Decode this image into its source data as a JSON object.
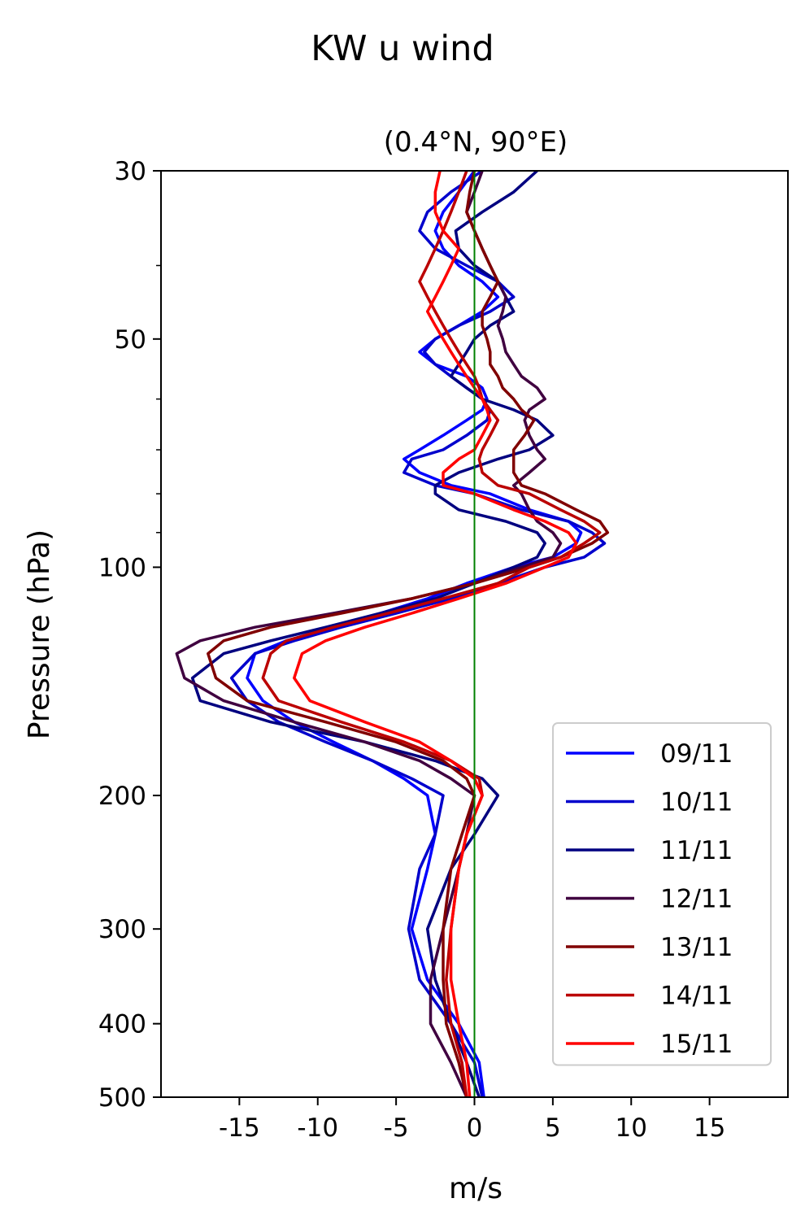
{
  "chart_data": {
    "type": "line",
    "title": "KW u wind",
    "subtitle": "(0.4°N, 90°E)",
    "xlabel": "m/s",
    "ylabel": "Pressure (hPa)",
    "xlim": [
      -20,
      20
    ],
    "ylim": [
      500,
      30
    ],
    "yscale": "log",
    "xticks": [
      -15,
      -10,
      -5,
      0,
      5,
      10,
      15
    ],
    "xtick_labels": [
      "-15",
      "-10",
      "-5",
      "0",
      "5",
      "10",
      "15"
    ],
    "yticks_major": [
      30,
      50,
      100,
      200,
      300,
      400,
      500
    ],
    "ytick_labels": [
      "30",
      "50",
      "100",
      "200",
      "300",
      "400",
      "500"
    ],
    "yticks_minor": [
      40,
      60,
      70,
      80,
      90
    ],
    "zero_line_color": "#008000",
    "grid": false,
    "legend_position": "lower right",
    "pressure_levels": [
      500,
      450,
      400,
      350,
      300,
      250,
      225,
      200,
      190,
      180,
      170,
      160,
      150,
      140,
      130,
      125,
      120,
      115,
      110,
      105,
      100,
      97,
      93,
      90,
      87,
      84,
      80,
      78,
      75,
      72,
      70,
      67,
      64,
      62,
      60,
      58,
      56,
      54,
      52,
      50,
      48,
      46,
      44,
      42,
      40,
      38,
      36,
      34,
      32,
      30
    ],
    "series": [
      {
        "name": "09/11",
        "color": "#0000ff",
        "values": [
          0.6,
          0.3,
          -1.0,
          -3.0,
          -4.0,
          -3.0,
          -2.5,
          -3.0,
          -4.5,
          -6.5,
          -9.0,
          -11.5,
          -13.5,
          -14.5,
          -14.0,
          -12.0,
          -9.0,
          -6.0,
          -3.0,
          -0.5,
          2.5,
          5.0,
          6.5,
          6.8,
          6.0,
          3.5,
          1.0,
          -1.5,
          -3.5,
          -4.5,
          -3.5,
          -2.0,
          -0.5,
          0.5,
          0.8,
          0.5,
          -0.5,
          -2.5,
          -3.5,
          -2.5,
          -1.0,
          0.5,
          1.5,
          0.5,
          -1.0,
          -2.0,
          -2.5,
          -2.0,
          -1.0,
          0.0
        ]
      },
      {
        "name": "10/11",
        "color": "#0000cc",
        "values": [
          0.5,
          0.0,
          -1.5,
          -3.5,
          -4.2,
          -3.5,
          -2.5,
          -2.0,
          -4.0,
          -6.5,
          -9.5,
          -12.5,
          -14.5,
          -15.5,
          -14.0,
          -11.5,
          -8.5,
          -5.0,
          -1.5,
          1.5,
          4.5,
          7.0,
          8.3,
          7.5,
          6.0,
          3.0,
          0.0,
          -2.5,
          -4.5,
          -4.0,
          -2.0,
          -0.5,
          0.8,
          1.0,
          0.5,
          -0.5,
          -1.5,
          -2.5,
          -3.2,
          -2.5,
          -1.0,
          1.0,
          2.5,
          1.5,
          -0.5,
          -2.5,
          -3.5,
          -3.0,
          -1.5,
          0.5
        ]
      },
      {
        "name": "11/11",
        "color": "#000080",
        "values": [
          0.3,
          -0.5,
          -1.5,
          -2.5,
          -3.0,
          -1.5,
          0.0,
          1.5,
          0.5,
          -2.5,
          -7.0,
          -13.0,
          -17.5,
          -18.0,
          -16.0,
          -13.0,
          -9.5,
          -6.0,
          -2.5,
          0.0,
          2.5,
          4.0,
          4.5,
          4.0,
          2.0,
          -1.0,
          -2.5,
          -2.5,
          -1.0,
          1.5,
          3.5,
          5.0,
          4.0,
          2.5,
          0.5,
          -0.5,
          -1.5,
          -1.0,
          -0.5,
          0.0,
          1.0,
          2.5,
          2.0,
          1.5,
          0.0,
          -1.0,
          -1.2,
          0.5,
          2.5,
          4.0
        ]
      },
      {
        "name": "12/11",
        "color": "#400040",
        "values": [
          -0.5,
          -1.5,
          -2.8,
          -2.8,
          -2.0,
          -1.0,
          -0.5,
          0.0,
          -1.5,
          -3.5,
          -7.0,
          -11.5,
          -16.0,
          -18.5,
          -19.0,
          -17.5,
          -14.0,
          -9.0,
          -4.0,
          0.0,
          3.0,
          5.0,
          5.5,
          5.0,
          4.0,
          3.5,
          3.0,
          2.5,
          3.5,
          4.5,
          4.0,
          3.5,
          3.2,
          3.5,
          4.5,
          4.0,
          3.0,
          2.5,
          2.0,
          1.8,
          1.5,
          1.8,
          2.0,
          1.5,
          1.0,
          0.5,
          0.0,
          -0.5,
          0.0,
          0.5
        ]
      },
      {
        "name": "13/11",
        "color": "#800000",
        "values": [
          -0.5,
          -1.0,
          -1.8,
          -2.0,
          -2.0,
          -1.5,
          -0.8,
          0.0,
          -0.5,
          -2.0,
          -5.0,
          -9.5,
          -14.5,
          -16.5,
          -17.0,
          -16.0,
          -13.0,
          -8.5,
          -4.0,
          0.0,
          3.5,
          5.5,
          7.5,
          8.5,
          8.0,
          6.5,
          4.5,
          3.0,
          2.5,
          2.5,
          2.5,
          3.2,
          3.8,
          3.0,
          2.5,
          1.8,
          1.5,
          1.0,
          1.0,
          0.8,
          0.5,
          0.5,
          1.0,
          1.5,
          1.0,
          0.5,
          0.0,
          -0.5,
          -0.3,
          0.0
        ]
      },
      {
        "name": "14/11",
        "color": "#bb0000",
        "values": [
          -0.5,
          -0.8,
          -1.5,
          -1.8,
          -1.5,
          -1.0,
          -0.5,
          0.5,
          0.3,
          -1.5,
          -4.5,
          -8.5,
          -12.5,
          -13.5,
          -13.0,
          -12.0,
          -9.0,
          -5.5,
          -2.0,
          1.5,
          3.5,
          5.5,
          7.0,
          8.0,
          7.0,
          5.5,
          3.5,
          1.5,
          0.5,
          0.3,
          0.5,
          1.0,
          1.5,
          1.0,
          0.5,
          0.3,
          0.0,
          -0.5,
          -1.0,
          -1.5,
          -2.0,
          -2.5,
          -3.0,
          -3.5,
          -3.0,
          -2.5,
          -2.0,
          -1.5,
          -1.0,
          -0.5
        ]
      },
      {
        "name": "15/11",
        "color": "#ff0000",
        "values": [
          -0.3,
          -0.5,
          -1.0,
          -1.5,
          -1.5,
          -1.0,
          -0.5,
          0.5,
          0.0,
          -1.5,
          -3.5,
          -7.0,
          -10.5,
          -11.5,
          -11.0,
          -9.5,
          -7.0,
          -4.0,
          -1.0,
          2.0,
          4.5,
          6.0,
          6.5,
          6.0,
          4.5,
          2.5,
          0.0,
          -2.0,
          -2.0,
          -1.0,
          0.0,
          0.5,
          1.0,
          0.8,
          0.5,
          0.0,
          -0.5,
          -1.0,
          -1.5,
          -2.0,
          -2.5,
          -3.0,
          -2.5,
          -2.0,
          -1.5,
          -1.0,
          -2.0,
          -2.5,
          -2.5,
          -2.2
        ]
      }
    ]
  }
}
